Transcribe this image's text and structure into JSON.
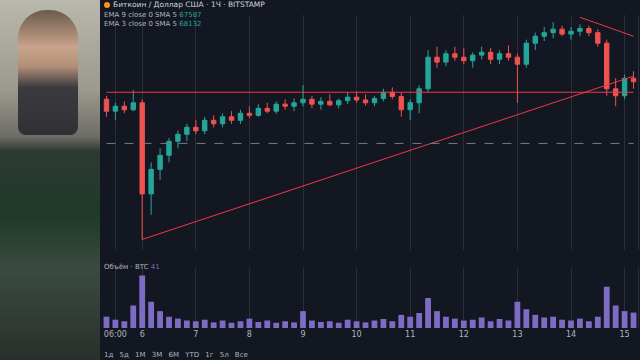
{
  "chart_data": {
    "type": "candlestick",
    "title": "Биткоин / Доллар США · 1Ч · BITSTAMP",
    "indicators": [
      {
        "label": "EMA 9 close 0 SMA 5",
        "value": 67587
      },
      {
        "label": "EMA 3 close 0 SMA 5",
        "value": 68132
      }
    ],
    "categories": [
      null,
      "06:00",
      null,
      null,
      "6",
      null,
      null,
      null,
      null,
      null,
      "7",
      null,
      null,
      null,
      null,
      null,
      "8",
      null,
      null,
      null,
      null,
      null,
      "9",
      null,
      null,
      null,
      null,
      null,
      "10",
      null,
      null,
      null,
      null,
      null,
      "11",
      null,
      null,
      null,
      null,
      null,
      "12",
      null,
      null,
      null,
      null,
      null,
      "13",
      null,
      null,
      null,
      null,
      null,
      "14",
      null,
      null,
      null,
      null,
      null,
      "15",
      null
    ],
    "open": [
      67950,
      67780,
      67850,
      67800,
      67900,
      66600,
      66950,
      67150,
      67350,
      67450,
      67550,
      67500,
      67650,
      67600,
      67700,
      67650,
      67750,
      67720,
      67820,
      67780,
      67880,
      67850,
      67900,
      67950,
      67880,
      67920,
      67870,
      67930,
      67980,
      67940,
      67900,
      67960,
      68050,
      67990,
      67800,
      67900,
      68100,
      68550,
      68480,
      68600,
      68550,
      68500,
      68580,
      68620,
      68520,
      68600,
      68550,
      68450,
      68750,
      68850,
      68900,
      68950,
      68880,
      68920,
      68960,
      68900,
      68750,
      68100,
      68000,
      68250
    ],
    "high": [
      68000,
      67900,
      67920,
      68080,
      67950,
      67050,
      67250,
      67400,
      67500,
      67600,
      67650,
      67700,
      67720,
      67750,
      67780,
      67800,
      67850,
      67880,
      67900,
      67920,
      67950,
      67960,
      68150,
      68000,
      67980,
      68020,
      67960,
      68050,
      68060,
      68020,
      68000,
      68100,
      68120,
      68050,
      67950,
      68150,
      68650,
      68700,
      68650,
      68700,
      68680,
      68620,
      68700,
      68680,
      68650,
      68720,
      68600,
      68800,
      68900,
      68980,
      69050,
      69000,
      68980,
      69020,
      69000,
      68950,
      68800,
      68250,
      68300,
      68350
    ],
    "low": [
      67700,
      67650,
      67750,
      67780,
      65950,
      66300,
      66800,
      67050,
      67250,
      67350,
      67450,
      67450,
      67550,
      67550,
      67600,
      67600,
      67680,
      67700,
      67750,
      67740,
      67800,
      67780,
      67850,
      67820,
      67800,
      67850,
      67820,
      67880,
      67900,
      67860,
      67850,
      67920,
      67950,
      67700,
      67650,
      67750,
      68050,
      68400,
      68420,
      68500,
      68450,
      68400,
      68520,
      68450,
      68450,
      68500,
      67900,
      68400,
      68650,
      68780,
      68820,
      68850,
      68800,
      68850,
      68850,
      68700,
      68000,
      67850,
      67950,
      68100
    ],
    "close": [
      67780,
      67850,
      67800,
      67900,
      66600,
      66950,
      67150,
      67350,
      67450,
      67550,
      67500,
      67650,
      67600,
      67700,
      67650,
      67750,
      67720,
      67820,
      67780,
      67880,
      67850,
      67900,
      67950,
      67880,
      67920,
      67870,
      67930,
      67980,
      67940,
      67900,
      67960,
      68050,
      67990,
      67800,
      67900,
      68100,
      68550,
      68480,
      68600,
      68550,
      68500,
      68580,
      68620,
      68520,
      68600,
      68550,
      68450,
      68750,
      68850,
      68900,
      68950,
      68880,
      68920,
      68960,
      68900,
      68750,
      68100,
      68000,
      68250,
      68200
    ],
    "colors": [
      "#26a69a",
      "#ef5350"
    ],
    "ylim": [
      65800,
      69150
    ],
    "grid": true,
    "tick_labels": "x",
    "volume": {
      "label": "Объём · BTC",
      "last": 41,
      "color": "#7e6bc4",
      "ylim": [
        0,
        160
      ],
      "values": [
        30,
        22,
        18,
        60,
        140,
        70,
        45,
        30,
        25,
        20,
        18,
        22,
        15,
        20,
        14,
        18,
        25,
        16,
        20,
        14,
        18,
        15,
        45,
        20,
        16,
        18,
        14,
        22,
        18,
        15,
        20,
        24,
        18,
        35,
        30,
        40,
        80,
        45,
        30,
        25,
        20,
        22,
        28,
        18,
        24,
        20,
        70,
        50,
        35,
        28,
        30,
        22,
        20,
        25,
        18,
        30,
        110,
        60,
        45,
        41
      ]
    },
    "lines": [
      {
        "x0": 0,
        "y0": 68050,
        "x1": 59,
        "y1": 68050,
        "color": "#f23645",
        "line_style": "solid"
      },
      {
        "x0": 4,
        "y0": 65950,
        "x1": 59,
        "y1": 68280,
        "color": "#f23645",
        "line_style": "solid"
      },
      {
        "x0": 53,
        "y0": 69120,
        "x1": 59,
        "y1": 68850,
        "color": "#f23645",
        "line_style": "solid"
      },
      {
        "x0": 0,
        "y0": 67320,
        "x1": 59,
        "y1": 67320,
        "color": "#787b86",
        "line_style": "dash"
      }
    ],
    "toolbar": [
      "1д",
      "5д",
      "1М",
      "3М",
      "6М",
      "YTD",
      "1г",
      "5л",
      "Все"
    ]
  }
}
